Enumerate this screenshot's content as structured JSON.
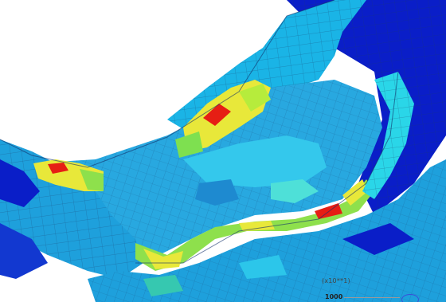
{
  "viewport": {
    "model_icon": "fe-mesh-contour-plot",
    "colormap": {
      "low": "#0a1ec8",
      "mid_low": "#1ab4e6",
      "mid": "#3ce6a0",
      "mid_high": "#f0f03c",
      "high": "#e61e14"
    }
  },
  "legend": {
    "multiplier": "(x10**1)",
    "value": "1000"
  }
}
